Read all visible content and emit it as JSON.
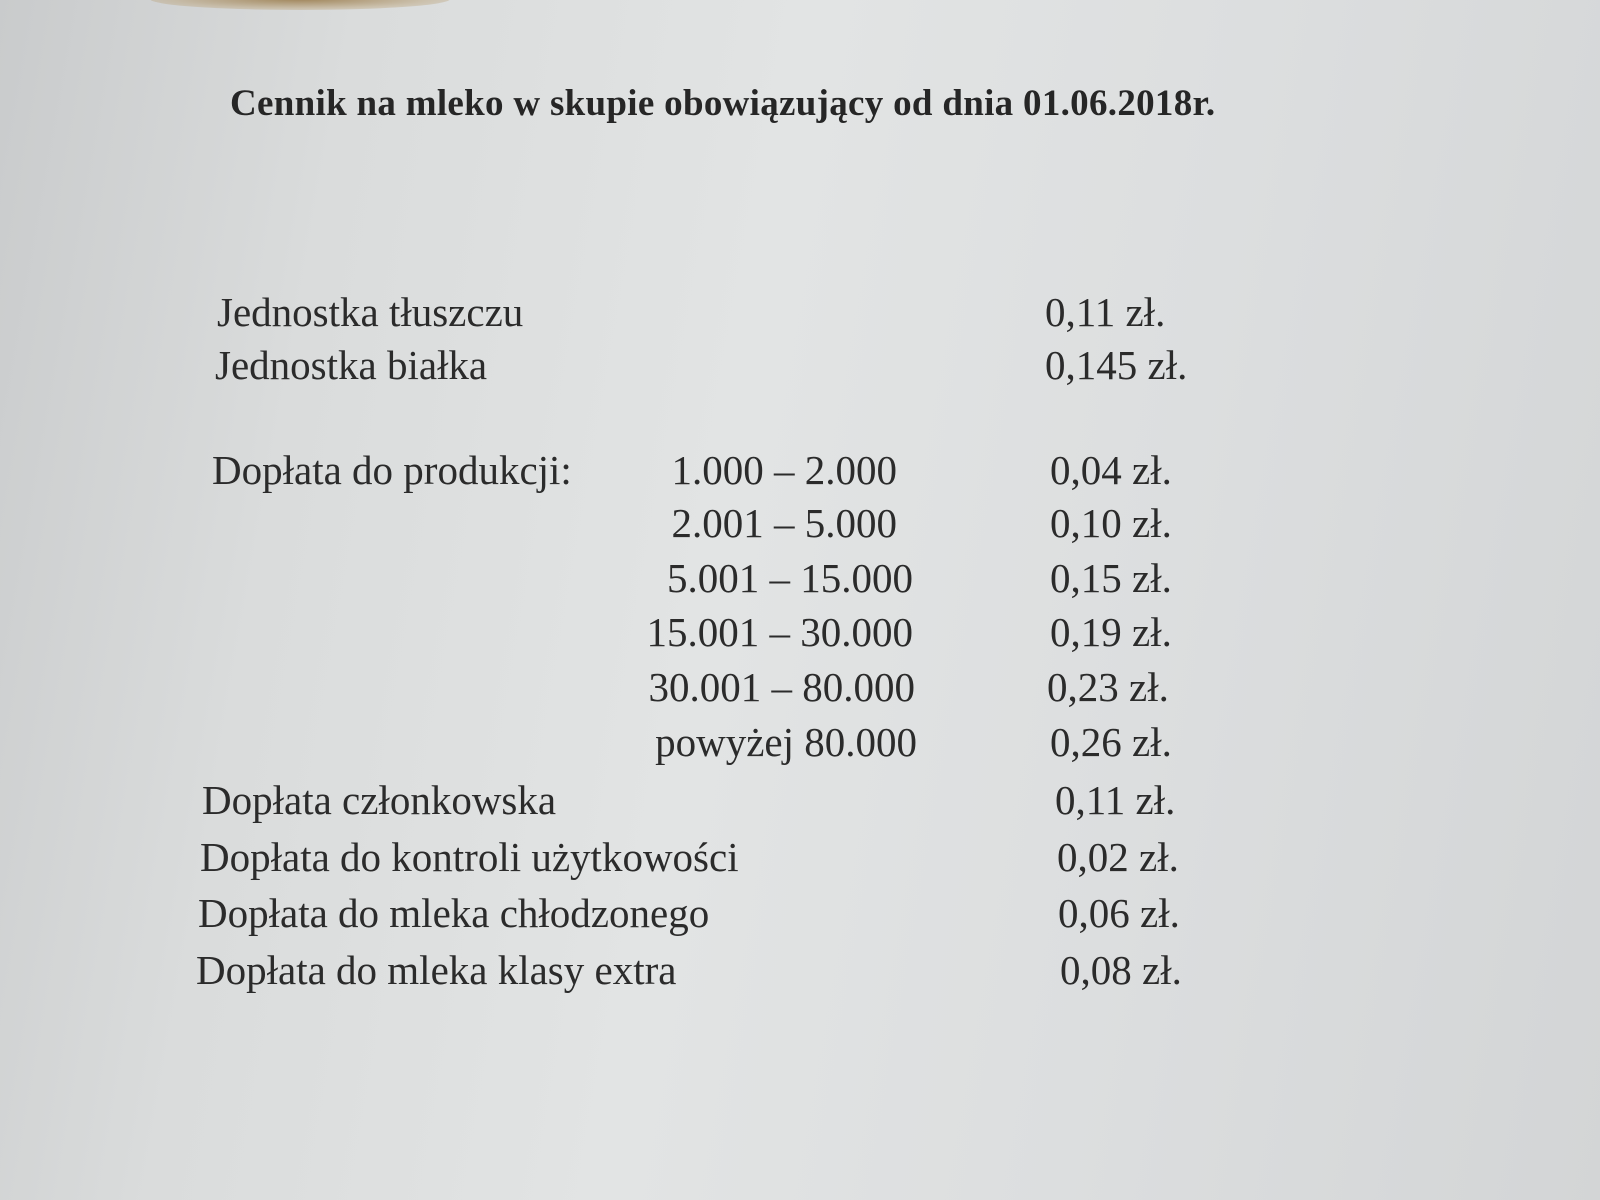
{
  "title": "Cennik na mleko w skupie obowiązujący od dnia 01.06.2018r.",
  "rows": [
    {
      "label": "Jednostka tłuszczu",
      "value": "0,11 zł."
    },
    {
      "label": "Jednostka białka",
      "value": "0,145 zł."
    },
    {
      "label": "Dopłata do produkcji:",
      "range": "1.000 – 2.000",
      "value": "0,04 zł."
    },
    {
      "range": "2.001 – 5.000",
      "value": "0,10 zł."
    },
    {
      "range": "5.001 – 15.000",
      "value": "0,15 zł."
    },
    {
      "range": "15.001 – 30.000",
      "value": "0,19 zł."
    },
    {
      "range": "30.001 – 80.000",
      "value": "0,23 zł."
    },
    {
      "range": "powyżej 80.000",
      "value": "0,26 zł."
    },
    {
      "label": "Dopłata członkowska",
      "value": "0,11 zł."
    },
    {
      "label": "Dopłata do kontroli użytkowości",
      "value": "0,02 zł."
    },
    {
      "label": "Dopłata do mleka chłodzonego",
      "value": "0,06 zł."
    },
    {
      "label": "Dopłata do mleka klasy extra",
      "value": "0,08 zł."
    }
  ]
}
